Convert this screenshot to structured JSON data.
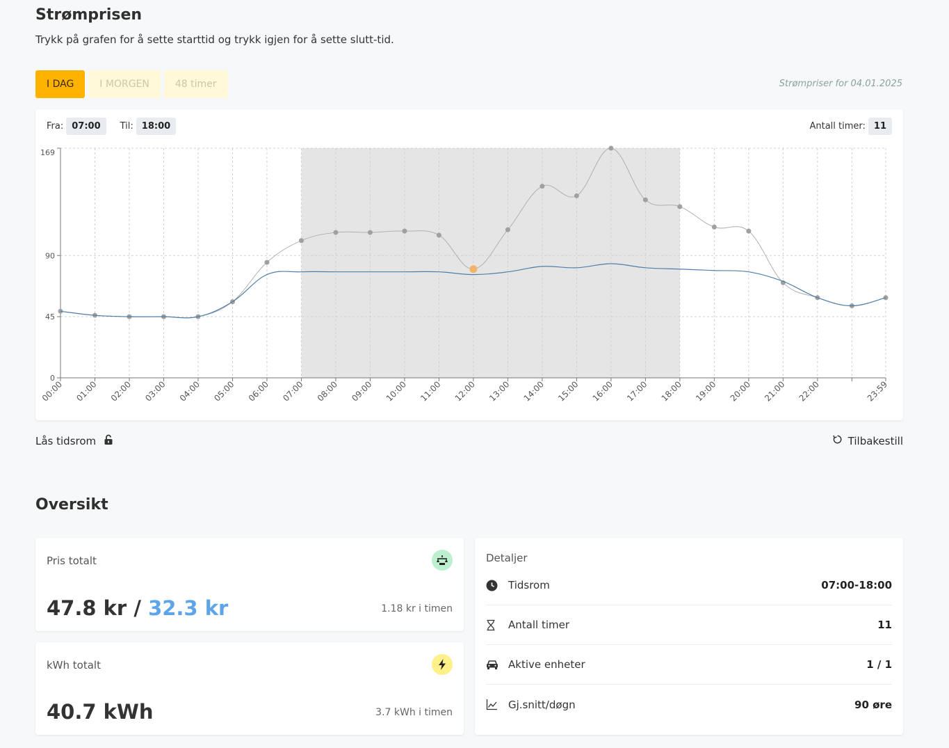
{
  "page": {
    "title": "Strømprisen",
    "subtitle": "Trykk på grafen for å sette starttid og trykk igjen for å sette slutt-tid."
  },
  "tabs": [
    {
      "label": "I DAG",
      "active": true
    },
    {
      "label": "I MORGEN",
      "active": false
    },
    {
      "label": "48 timer",
      "active": false
    }
  ],
  "date_note": "Strømpriser for 04.01.2025",
  "range": {
    "from_label": "Fra:",
    "from_value": "07:00",
    "to_label": "Til:",
    "to_value": "18:00",
    "hours_label": "Antall timer:",
    "hours_value": "11"
  },
  "chart_data": {
    "type": "line",
    "x": [
      "00:00",
      "01:00",
      "02:00",
      "03:00",
      "04:00",
      "05:00",
      "06:00",
      "07:00",
      "08:00",
      "09:00",
      "10:00",
      "11:00",
      "12:00",
      "13:00",
      "14:00",
      "15:00",
      "16:00",
      "17:00",
      "18:00",
      "19:00",
      "20:00",
      "21:00",
      "22:00",
      "23:00",
      "23:59"
    ],
    "xticks": [
      "00:00",
      "01:00",
      "02:00",
      "03:00",
      "04:00",
      "05:00",
      "06:00",
      "07:00",
      "08:00",
      "09:00",
      "10:00",
      "11:00",
      "12:00",
      "13:00",
      "14:00",
      "15:00",
      "16:00",
      "17:00",
      "18:00",
      "19:00",
      "20:00",
      "21:00",
      "22:00",
      "",
      "23:59"
    ],
    "yticks": [
      "0",
      "45",
      "90",
      "169"
    ],
    "ytick_values": [
      0,
      45,
      90,
      169
    ],
    "ylim": [
      0,
      169
    ],
    "series": [
      {
        "values": [
          49,
          46,
          45,
          45,
          45,
          56,
          85,
          101,
          107,
          107,
          108,
          105,
          80,
          109,
          141,
          134,
          169,
          131,
          126,
          111,
          108,
          70,
          59,
          53,
          59
        ],
        "color": "#b0b0b0",
        "points": true,
        "highlight_index": 12,
        "highlight_color": "#f2b46b"
      },
      {
        "values": [
          49,
          46,
          45,
          45,
          45,
          56,
          76,
          78,
          78,
          78,
          78,
          78,
          76,
          78,
          82,
          81,
          84,
          81,
          80,
          79,
          78,
          71,
          59,
          53,
          59
        ],
        "color": "#4f7fa8",
        "points": false
      }
    ],
    "selection": {
      "from": "07:00",
      "to": "18:00"
    },
    "grid": true,
    "legend": "none"
  },
  "lock": {
    "label": "Lås tidsrom",
    "icon": "unlock-icon"
  },
  "reset": {
    "label": "Tilbakestill",
    "icon": "reset-icon"
  },
  "overview": {
    "title": "Oversikt",
    "price_card": {
      "label": "Pris totalt",
      "value_main": "47.8 kr",
      "separator": "/",
      "value_alt": "32.3 kr",
      "per_hour": "1.18 kr i timen",
      "icon_bg": "#bdf0cf"
    },
    "kwh_card": {
      "label": "kWh totalt",
      "value": "40.7 kWh",
      "per_hour": "3.7 kWh i timen",
      "icon_bg": "#fff08a"
    },
    "details": {
      "title": "Detaljer",
      "rows": [
        {
          "icon": "clock-icon",
          "label": "Tidsrom",
          "value": "07:00-18:00"
        },
        {
          "icon": "hourglass-icon",
          "label": "Antall timer",
          "value": "11"
        },
        {
          "icon": "car-icon",
          "label": "Aktive enheter",
          "value": "1 / 1"
        },
        {
          "icon": "chart-line-icon",
          "label": "Gj.snitt/døgn",
          "value": "90 øre"
        }
      ]
    }
  }
}
